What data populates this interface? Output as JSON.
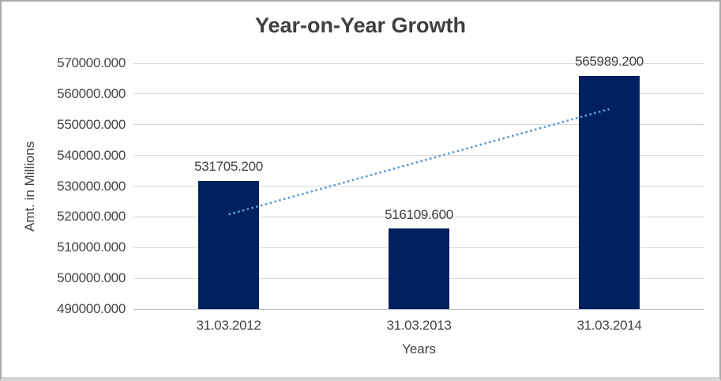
{
  "chart_data": {
    "type": "bar",
    "title": "Year-on-Year Growth",
    "xlabel": "Years",
    "ylabel": "Amt. in Millions",
    "categories": [
      "31.03.2012",
      "31.03.2013",
      "31.03.2014"
    ],
    "values": [
      531705.2,
      516109.6,
      565989.2
    ],
    "data_labels": [
      "531705.200",
      "516109.600",
      "565989.200"
    ],
    "ylim": [
      490000,
      570000
    ],
    "y_tick_step": 10000,
    "y_tick_labels": [
      "570000.000",
      "560000.000",
      "550000.000",
      "540000.000",
      "530000.000",
      "520000.000",
      "510000.000",
      "500000.000",
      "490000.000"
    ],
    "grid": true,
    "legend": false,
    "trendline": {
      "type": "linear",
      "style": "dotted"
    },
    "colors": {
      "bar": "#002060",
      "trendline": "#5b9bd5",
      "gridline": "#d9d9d9",
      "axis_line": "#bfbfbf",
      "text": "#404040"
    }
  }
}
